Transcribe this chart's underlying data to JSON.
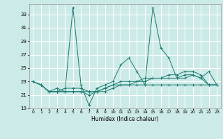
{
  "title": "",
  "xlabel": "Humidex (Indice chaleur)",
  "xlim": [
    -0.5,
    23.5
  ],
  "ylim": [
    19,
    34.5
  ],
  "yticks": [
    19,
    21,
    23,
    25,
    27,
    29,
    31,
    33
  ],
  "xticks": [
    0,
    1,
    2,
    3,
    4,
    5,
    6,
    7,
    8,
    9,
    10,
    11,
    12,
    13,
    14,
    15,
    16,
    17,
    18,
    19,
    20,
    21,
    22,
    23
  ],
  "bg_color": "#cceae7",
  "line_color": "#1a7a6e",
  "grid_color": "#ffffff",
  "lines": [
    [
      23.0,
      22.5,
      21.5,
      21.5,
      21.5,
      34.0,
      22.5,
      19.5,
      22.0,
      22.5,
      23.0,
      25.5,
      26.5,
      24.5,
      22.5,
      34.0,
      28.0,
      26.5,
      23.5,
      23.5,
      24.0,
      23.5,
      24.5,
      22.5
    ],
    [
      23.0,
      22.5,
      21.5,
      22.0,
      21.5,
      21.5,
      21.5,
      21.0,
      21.5,
      22.0,
      22.5,
      23.0,
      23.0,
      23.0,
      23.5,
      23.5,
      23.5,
      23.5,
      23.5,
      24.0,
      24.0,
      23.5,
      22.5,
      22.5
    ],
    [
      23.0,
      22.5,
      21.5,
      21.5,
      21.5,
      21.5,
      21.5,
      21.5,
      21.5,
      21.5,
      22.0,
      22.5,
      22.5,
      22.5,
      22.5,
      22.5,
      22.5,
      22.5,
      22.5,
      22.5,
      22.5,
      22.5,
      22.5,
      22.5
    ],
    [
      23.0,
      22.5,
      21.5,
      21.5,
      22.0,
      22.0,
      22.0,
      21.5,
      21.5,
      22.0,
      22.5,
      22.5,
      22.5,
      23.0,
      23.0,
      23.5,
      23.5,
      24.0,
      24.0,
      24.5,
      24.5,
      24.0,
      22.5,
      22.5
    ]
  ]
}
